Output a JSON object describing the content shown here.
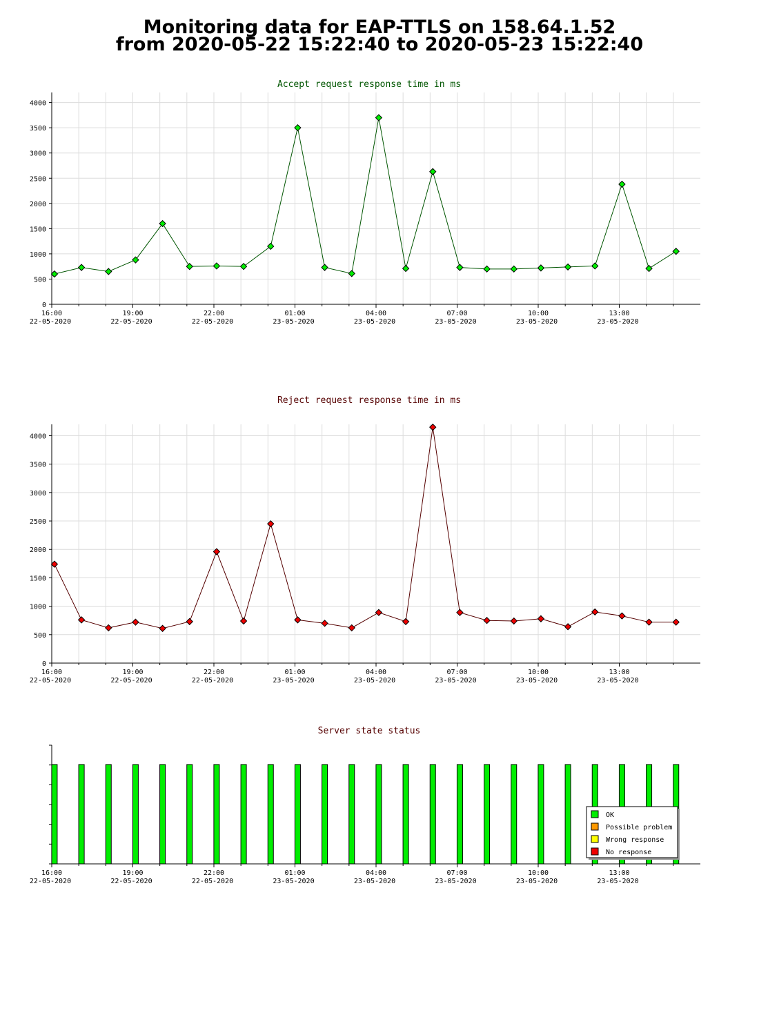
{
  "page": {
    "title_line1": "Monitoring data for EAP-TTLS on 158.64.1.52",
    "title_line2": "from 2020-05-22 15:22:40 to 2020-05-23 15:22:40"
  },
  "chart_data": [
    {
      "type": "line",
      "title": "Accept request response time in ms",
      "title_color": "#005500",
      "line_color": "#005500",
      "marker_color": "#00ee00",
      "ylim": [
        0,
        4200
      ],
      "yticks": [
        0,
        500,
        1000,
        1500,
        2000,
        2500,
        3000,
        3500,
        4000
      ],
      "grid": true,
      "x_tick_labels": [
        {
          "time": "16:00",
          "date": "22-05-2020"
        },
        {
          "time": "19:00",
          "date": "22-05-2020"
        },
        {
          "time": "22:00",
          "date": "22-05-2020"
        },
        {
          "time": "01:00",
          "date": "23-05-2020"
        },
        {
          "time": "04:00",
          "date": "23-05-2020"
        },
        {
          "time": "07:00",
          "date": "23-05-2020"
        },
        {
          "time": "10:00",
          "date": "23-05-2020"
        },
        {
          "time": "13:00",
          "date": "23-05-2020"
        }
      ],
      "x_hours": [
        16.1,
        17.1,
        18.1,
        19.1,
        20.1,
        21.1,
        22.1,
        23.1,
        24.1,
        25.1,
        26.1,
        27.1,
        28.1,
        29.1,
        30.1,
        31.1,
        32.1,
        33.1,
        34.1,
        35.1,
        36.1,
        37.1,
        38.1,
        39.1
      ],
      "values": [
        600,
        730,
        650,
        880,
        1600,
        750,
        760,
        750,
        1150,
        3500,
        730,
        610,
        3700,
        710,
        2630,
        730,
        700,
        700,
        720,
        740,
        760,
        2380,
        710,
        1050
      ]
    },
    {
      "type": "line",
      "title": "Reject request response time in ms",
      "title_color": "#550000",
      "line_color": "#550000",
      "marker_color": "#ee0000",
      "ylim": [
        0,
        4200
      ],
      "yticks": [
        0,
        500,
        1000,
        1500,
        2000,
        2500,
        3000,
        3500,
        4000
      ],
      "grid": true,
      "x_tick_labels": [
        {
          "time": "16:00",
          "date": "22-05-2020"
        },
        {
          "time": "19:00",
          "date": "22-05-2020"
        },
        {
          "time": "22:00",
          "date": "22-05-2020"
        },
        {
          "time": "01:00",
          "date": "23-05-2020"
        },
        {
          "time": "04:00",
          "date": "23-05-2020"
        },
        {
          "time": "07:00",
          "date": "23-05-2020"
        },
        {
          "time": "10:00",
          "date": "23-05-2020"
        },
        {
          "time": "13:00",
          "date": "23-05-2020"
        }
      ],
      "x_hours": [
        16.1,
        17.1,
        18.1,
        19.1,
        20.1,
        21.1,
        22.1,
        23.1,
        24.1,
        25.1,
        26.1,
        27.1,
        28.1,
        29.1,
        30.1,
        31.1,
        32.1,
        33.1,
        34.1,
        35.1,
        36.1,
        37.1,
        38.1,
        39.1
      ],
      "values": [
        1740,
        760,
        620,
        720,
        610,
        730,
        1960,
        740,
        2450,
        760,
        700,
        620,
        890,
        730,
        4150,
        890,
        750,
        740,
        780,
        640,
        900,
        830,
        720,
        720
      ]
    },
    {
      "type": "bar",
      "title": "Server state status",
      "title_color": "#550000",
      "x_tick_labels": [
        {
          "time": "16:00",
          "date": "22-05-2020"
        },
        {
          "time": "19:00",
          "date": "22-05-2020"
        },
        {
          "time": "22:00",
          "date": "22-05-2020"
        },
        {
          "time": "01:00",
          "date": "23-05-2020"
        },
        {
          "time": "04:00",
          "date": "23-05-2020"
        },
        {
          "time": "07:00",
          "date": "23-05-2020"
        },
        {
          "time": "10:00",
          "date": "23-05-2020"
        },
        {
          "time": "13:00",
          "date": "23-05-2020"
        }
      ],
      "x_hours": [
        16.1,
        17.1,
        18.1,
        19.1,
        20.1,
        21.1,
        22.1,
        23.1,
        24.1,
        25.1,
        26.1,
        27.1,
        28.1,
        29.1,
        30.1,
        31.1,
        32.1,
        33.1,
        34.1,
        35.1,
        36.1,
        37.1,
        38.1,
        39.1
      ],
      "states": [
        "OK",
        "OK",
        "OK",
        "OK",
        "OK",
        "OK",
        "OK",
        "OK",
        "OK",
        "OK",
        "OK",
        "OK",
        "OK",
        "OK",
        "OK",
        "OK",
        "OK",
        "OK",
        "OK",
        "OK",
        "OK",
        "OK",
        "OK",
        "OK"
      ],
      "legend": [
        {
          "label": "OK",
          "color": "#00ee00"
        },
        {
          "label": "Possible problem",
          "color": "#ff9900"
        },
        {
          "label": "Wrong response",
          "color": "#ffff00"
        },
        {
          "label": "No response",
          "color": "#ee0000"
        }
      ],
      "legend_position": "bottom-right"
    }
  ]
}
